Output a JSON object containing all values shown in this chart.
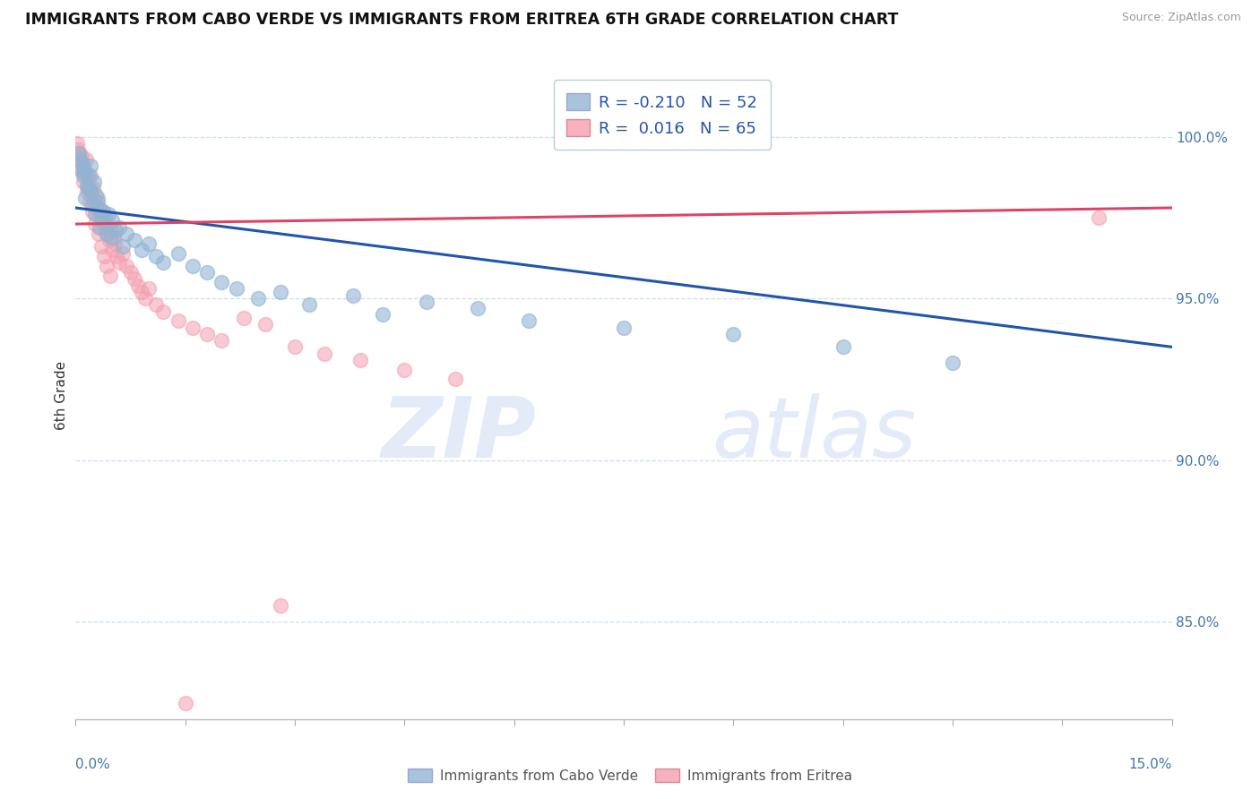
{
  "title": "IMMIGRANTS FROM CABO VERDE VS IMMIGRANTS FROM ERITREA 6TH GRADE CORRELATION CHART",
  "source": "Source: ZipAtlas.com",
  "ylabel": "6th Grade",
  "xlim": [
    0.0,
    15.0
  ],
  "ylim": [
    82.0,
    102.0
  ],
  "yticks": [
    85.0,
    90.0,
    95.0,
    100.0
  ],
  "ytick_labels": [
    "85.0%",
    "90.0%",
    "95.0%",
    "100.0%"
  ],
  "blue_R": -0.21,
  "blue_N": 52,
  "pink_R": 0.016,
  "pink_N": 65,
  "blue_color": "#92B4D4",
  "pink_color": "#F4A0B0",
  "blue_label": "Immigrants from Cabo Verde",
  "pink_label": "Immigrants from Eritrea",
  "blue_scatter_x": [
    0.05,
    0.08,
    0.1,
    0.12,
    0.15,
    0.18,
    0.2,
    0.22,
    0.25,
    0.28,
    0.3,
    0.32,
    0.35,
    0.38,
    0.4,
    0.45,
    0.5,
    0.55,
    0.6,
    0.7,
    0.8,
    0.9,
    1.0,
    1.1,
    1.2,
    1.4,
    1.6,
    1.8,
    2.0,
    2.2,
    2.5,
    2.8,
    3.2,
    3.8,
    4.2,
    4.8,
    5.5,
    6.2,
    7.5,
    9.0,
    10.5,
    12.0,
    0.06,
    0.09,
    0.13,
    0.17,
    0.23,
    0.27,
    0.33,
    0.42,
    0.48,
    0.65
  ],
  "blue_scatter_y": [
    99.5,
    99.2,
    98.8,
    99.0,
    98.5,
    98.8,
    99.1,
    98.3,
    98.6,
    98.2,
    98.0,
    97.8,
    97.5,
    97.7,
    97.3,
    97.6,
    97.4,
    97.1,
    97.2,
    97.0,
    96.8,
    96.5,
    96.7,
    96.3,
    96.1,
    96.4,
    96.0,
    95.8,
    95.5,
    95.3,
    95.0,
    95.2,
    94.8,
    95.1,
    94.5,
    94.9,
    94.7,
    94.3,
    94.1,
    93.9,
    93.5,
    93.0,
    99.3,
    98.9,
    98.1,
    98.4,
    97.9,
    97.6,
    97.2,
    97.0,
    96.9,
    96.6
  ],
  "pink_scatter_x": [
    0.02,
    0.04,
    0.06,
    0.08,
    0.1,
    0.12,
    0.14,
    0.16,
    0.18,
    0.2,
    0.22,
    0.24,
    0.26,
    0.28,
    0.3,
    0.32,
    0.34,
    0.36,
    0.38,
    0.4,
    0.42,
    0.44,
    0.46,
    0.48,
    0.5,
    0.52,
    0.54,
    0.56,
    0.6,
    0.65,
    0.7,
    0.75,
    0.8,
    0.85,
    0.9,
    0.95,
    1.0,
    1.1,
    1.2,
    1.4,
    1.6,
    1.8,
    2.0,
    2.3,
    2.6,
    3.0,
    3.4,
    3.9,
    4.5,
    5.2,
    0.03,
    0.07,
    0.11,
    0.15,
    0.19,
    0.23,
    0.27,
    0.31,
    0.35,
    0.39,
    0.43,
    0.47,
    2.8,
    14.0,
    1.5
  ],
  "pink_scatter_y": [
    99.8,
    99.5,
    99.2,
    99.4,
    99.1,
    98.9,
    99.3,
    98.7,
    98.5,
    98.8,
    98.2,
    98.4,
    98.0,
    97.8,
    98.1,
    97.6,
    97.4,
    97.7,
    97.2,
    97.5,
    97.0,
    97.3,
    96.8,
    97.1,
    96.5,
    96.9,
    96.7,
    96.3,
    96.1,
    96.4,
    96.0,
    95.8,
    95.6,
    95.4,
    95.2,
    95.0,
    95.3,
    94.8,
    94.6,
    94.3,
    94.1,
    93.9,
    93.7,
    94.4,
    94.2,
    93.5,
    93.3,
    93.1,
    92.8,
    92.5,
    99.6,
    99.0,
    98.6,
    98.3,
    98.0,
    97.7,
    97.3,
    97.0,
    96.6,
    96.3,
    96.0,
    95.7,
    85.5,
    97.5,
    82.5
  ],
  "blue_trend_x": [
    0.0,
    15.0
  ],
  "blue_trend_y": [
    97.8,
    93.5
  ],
  "pink_trend_x": [
    0.0,
    15.0
  ],
  "pink_trend_y": [
    97.3,
    97.8
  ],
  "watermark_zip": "ZIP",
  "watermark_atlas": "atlas",
  "title_color": "#111111",
  "axis_color": "#4477AA",
  "grid_color": "#CCDDEE",
  "blue_line_color": "#2255AA",
  "pink_line_color": "#DD4466"
}
